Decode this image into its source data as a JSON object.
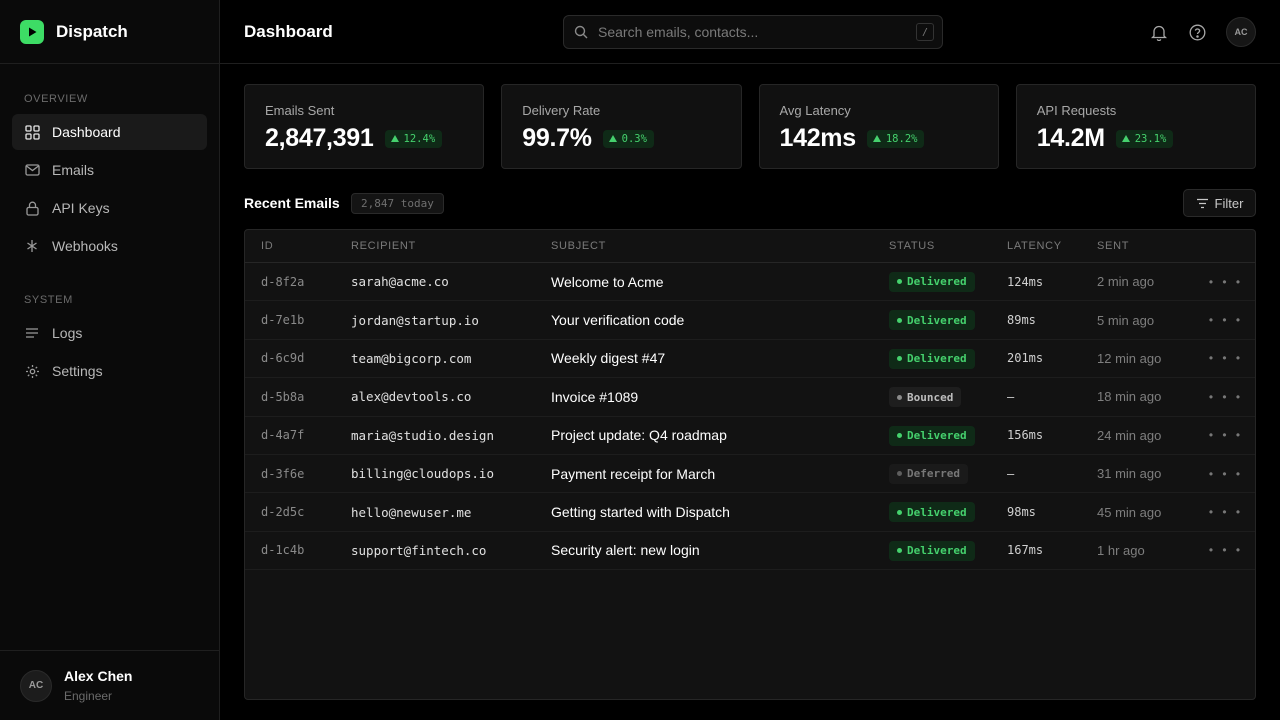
{
  "app": {
    "name": "Dispatch"
  },
  "sidebar": {
    "sections": [
      {
        "label": "OVERVIEW"
      },
      {
        "label": "SYSTEM"
      }
    ],
    "items": [
      {
        "label": "Dashboard",
        "icon": "grid-icon",
        "active": true
      },
      {
        "label": "Emails",
        "icon": "mail-icon"
      },
      {
        "label": "API Keys",
        "icon": "lock-icon"
      },
      {
        "label": "Webhooks",
        "icon": "asterisk-icon"
      },
      {
        "label": "Logs",
        "icon": "lines-icon"
      },
      {
        "label": "Settings",
        "icon": "gear-icon"
      }
    ],
    "user": {
      "initials": "AC",
      "name": "Alex Chen",
      "role": "Engineer"
    }
  },
  "header": {
    "title": "Dashboard",
    "search_placeholder": "Search emails, contacts...",
    "search_shortcut": "/",
    "avatar_initials": "AC"
  },
  "stats": [
    {
      "label": "Emails Sent",
      "value": "2,847,391",
      "delta": "12.4%"
    },
    {
      "label": "Delivery Rate",
      "value": "99.7%",
      "delta": "0.3%"
    },
    {
      "label": "Avg Latency",
      "value": "142ms",
      "delta": "18.2%"
    },
    {
      "label": "API Requests",
      "value": "14.2M",
      "delta": "23.1%"
    }
  ],
  "recent": {
    "title": "Recent Emails",
    "count": "2,847 today",
    "filter_label": "Filter",
    "columns": [
      "ID",
      "RECIPIENT",
      "SUBJECT",
      "STATUS",
      "LATENCY",
      "SENT"
    ],
    "more_label": "• • •",
    "rows": [
      {
        "id": "d-8f2a",
        "recipient": "sarah@acme.co",
        "subject": "Welcome to Acme",
        "status": "Delivered",
        "latency": "124ms",
        "sent": "2 min ago"
      },
      {
        "id": "d-7e1b",
        "recipient": "jordan@startup.io",
        "subject": "Your verification code",
        "status": "Delivered",
        "latency": "89ms",
        "sent": "5 min ago"
      },
      {
        "id": "d-6c9d",
        "recipient": "team@bigcorp.com",
        "subject": "Weekly digest #47",
        "status": "Delivered",
        "latency": "201ms",
        "sent": "12 min ago"
      },
      {
        "id": "d-5b8a",
        "recipient": "alex@devtools.co",
        "subject": "Invoice #1089",
        "status": "Bounced",
        "latency": "—",
        "sent": "18 min ago"
      },
      {
        "id": "d-4a7f",
        "recipient": "maria@studio.design",
        "subject": "Project update: Q4 roadmap",
        "status": "Delivered",
        "latency": "156ms",
        "sent": "24 min ago"
      },
      {
        "id": "d-3f6e",
        "recipient": "billing@cloudops.io",
        "subject": "Payment receipt for March",
        "status": "Deferred",
        "latency": "—",
        "sent": "31 min ago"
      },
      {
        "id": "d-2d5c",
        "recipient": "hello@newuser.me",
        "subject": "Getting started with Dispatch",
        "status": "Delivered",
        "latency": "98ms",
        "sent": "45 min ago"
      },
      {
        "id": "d-1c4b",
        "recipient": "support@fintech.co",
        "subject": "Security alert: new login",
        "status": "Delivered",
        "latency": "167ms",
        "sent": "1 hr ago"
      }
    ]
  },
  "colors": {
    "accent": "#3ddc65",
    "delivered": "#45d16d",
    "background": "#000000",
    "panel": "#111111"
  }
}
